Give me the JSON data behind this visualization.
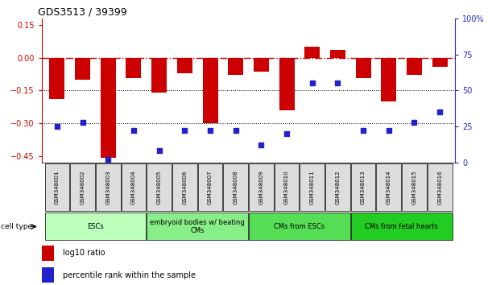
{
  "title": "GDS3513 / 39399",
  "samples": [
    "GSM348001",
    "GSM348002",
    "GSM348003",
    "GSM348004",
    "GSM348005",
    "GSM348006",
    "GSM348007",
    "GSM348008",
    "GSM348009",
    "GSM348010",
    "GSM348011",
    "GSM348012",
    "GSM348013",
    "GSM348014",
    "GSM348015",
    "GSM348016"
  ],
  "log10_ratio": [
    -0.19,
    -0.1,
    -0.46,
    -0.095,
    -0.16,
    -0.07,
    -0.3,
    -0.08,
    -0.065,
    -0.24,
    0.05,
    0.035,
    -0.095,
    -0.2,
    -0.08,
    -0.04
  ],
  "percentile_rank": [
    25,
    28,
    2,
    22,
    8,
    22,
    22,
    22,
    12,
    20,
    55,
    55,
    22,
    22,
    28,
    35
  ],
  "ylim_left": [
    -0.48,
    0.18
  ],
  "ylim_right": [
    0,
    100
  ],
  "yticks_left": [
    0.15,
    0.0,
    -0.15,
    -0.3,
    -0.45
  ],
  "yticks_right": [
    100,
    75,
    50,
    25,
    0
  ],
  "bar_color": "#cc0000",
  "dot_color": "#2222cc",
  "group_colors": [
    "#bbffbb",
    "#88ee88",
    "#55dd55",
    "#22cc22"
  ],
  "group_labels": [
    "ESCs",
    "embryoid bodies w/ beating\nCMs",
    "CMs from ESCs",
    "CMs from fetal hearts"
  ],
  "group_ranges": [
    [
      0,
      3
    ],
    [
      4,
      7
    ],
    [
      8,
      11
    ],
    [
      12,
      15
    ]
  ],
  "legend_red": "log10 ratio",
  "legend_blue": "percentile rank within the sample",
  "background_color": "#ffffff"
}
